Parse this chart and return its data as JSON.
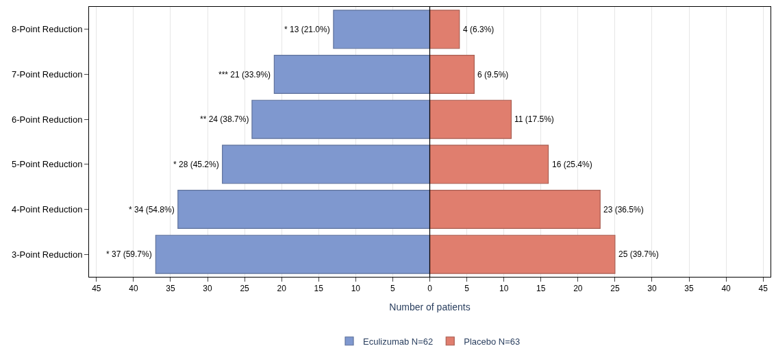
{
  "chart_data": {
    "type": "bar",
    "orientation": "horizontal",
    "xlabel": "Number of patients",
    "categories": [
      "8-Point Reduction",
      "7-Point Reduction",
      "6-Point Reduction",
      "5-Point Reduction",
      "4-Point Reduction",
      "3-Point Reduction"
    ],
    "series": [
      {
        "name": "Eculizumab N=62",
        "color": "#7f98cf",
        "values": [
          13,
          21,
          24,
          28,
          34,
          37
        ],
        "base": [
          -13,
          -21,
          -24,
          -28,
          -34,
          -37
        ],
        "value_labels": [
          "* 13 (21.0%)",
          "*** 21 (33.9%)",
          "** 24 (38.7%)",
          "* 28 (45.2%)",
          "* 34 (54.8%)",
          "* 37 (59.7%)"
        ]
      },
      {
        "name": "Placebo N=63",
        "color": "#e07e6e",
        "values": [
          4,
          6,
          11,
          16,
          23,
          25
        ],
        "value_labels": [
          "4 (6.3%)",
          "6 (9.5%)",
          "11 (17.5%)",
          "16 (25.4%)",
          "23 (36.5%)",
          "25 (39.7%)"
        ]
      }
    ],
    "xlim": [
      -46,
      46
    ],
    "xticks": [
      {
        "value": -45,
        "label": "45"
      },
      {
        "value": -40,
        "label": "40"
      },
      {
        "value": -35,
        "label": "35"
      },
      {
        "value": -30,
        "label": "30"
      },
      {
        "value": -25,
        "label": "25"
      },
      {
        "value": -20,
        "label": "20"
      },
      {
        "value": -15,
        "label": "15"
      },
      {
        "value": -10,
        "label": "10"
      },
      {
        "value": -5,
        "label": "5"
      },
      0,
      5,
      10,
      15,
      20,
      25,
      30,
      35,
      40,
      45
    ],
    "ref_lines": [
      {
        "axis": "x",
        "value": 0,
        "color": "#000000"
      }
    ],
    "grid": "x",
    "legend": "bottom"
  }
}
